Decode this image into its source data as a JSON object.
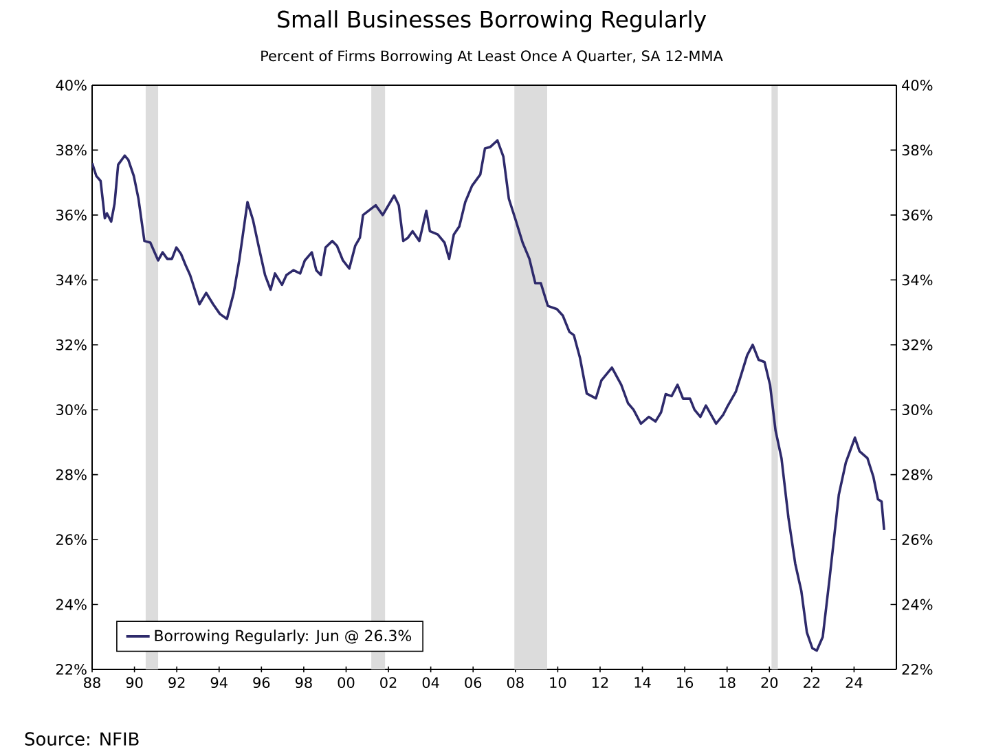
{
  "chart_data": {
    "type": "line",
    "title": "Small Businesses Borrowing Regularly",
    "subtitle": "Percent of Firms Borrowing At Least Once A Quarter, SA 12-MMA",
    "annotations": [
      "Source: NFIB"
    ],
    "series": [
      {
        "name": "Borrowing Regularly: Jun @ 26.3%",
        "color": "#2e2a6b",
        "x": [
          1988.0,
          1988.2,
          1988.4,
          1988.6,
          1988.7,
          1988.9,
          1989.06,
          1989.23,
          1989.54,
          1989.71,
          1989.97,
          1990.19,
          1990.47,
          1990.75,
          1991.12,
          1991.33,
          1991.55,
          1991.77,
          1991.98,
          1992.2,
          1992.42,
          1992.63,
          1993.07,
          1993.39,
          1993.72,
          1994.04,
          1994.37,
          1994.69,
          1994.95,
          1995.34,
          1995.6,
          1995.88,
          1996.17,
          1996.43,
          1996.64,
          1996.97,
          1997.18,
          1997.51,
          1997.83,
          1998.05,
          1998.38,
          1998.59,
          1998.81,
          1999.03,
          1999.35,
          1999.57,
          1999.85,
          2000.15,
          2000.43,
          2000.65,
          2000.8,
          2001.4,
          2001.73,
          2002.27,
          2002.49,
          2002.7,
          2002.92,
          2003.14,
          2003.46,
          2003.79,
          2003.96,
          2004.33,
          2004.65,
          2004.87,
          2005.09,
          2005.35,
          2005.63,
          2005.95,
          2006.34,
          2006.56,
          2006.82,
          2007.15,
          2007.43,
          2007.69,
          2008.01,
          2008.34,
          2008.66,
          2008.94,
          2009.2,
          2009.53,
          2009.96,
          2010.24,
          2010.55,
          2010.76,
          2011.05,
          2011.37,
          2011.8,
          2012.06,
          2012.56,
          2013.0,
          2013.32,
          2013.58,
          2013.93,
          2014.3,
          2014.62,
          2014.88,
          2015.1,
          2015.38,
          2015.66,
          2015.92,
          2016.25,
          2016.46,
          2016.74,
          2017.0,
          2017.48,
          2017.82,
          2018.04,
          2018.41,
          2018.62,
          2018.95,
          2019.21,
          2019.49,
          2019.77,
          2020.03,
          2020.29,
          2020.57,
          2020.9,
          2021.22,
          2021.51,
          2021.77,
          2022.03,
          2022.24,
          2022.52,
          2022.85,
          2023.28,
          2023.61,
          2024.04,
          2024.26,
          2024.63,
          2024.91,
          2025.13,
          2025.3,
          2025.42
        ],
        "values": [
          37.6,
          37.2,
          37.05,
          35.9,
          36.05,
          35.8,
          36.35,
          37.55,
          37.83,
          37.7,
          37.2,
          36.5,
          35.2,
          35.15,
          34.6,
          34.85,
          34.65,
          34.65,
          35.0,
          34.8,
          34.45,
          34.15,
          33.25,
          33.6,
          33.25,
          32.95,
          32.8,
          33.6,
          34.6,
          36.4,
          35.85,
          35.0,
          34.15,
          33.7,
          34.2,
          33.85,
          34.15,
          34.3,
          34.2,
          34.6,
          34.85,
          34.3,
          34.15,
          35.0,
          35.2,
          35.05,
          34.6,
          34.35,
          35.05,
          35.3,
          36.0,
          36.3,
          36.0,
          36.6,
          36.3,
          35.2,
          35.3,
          35.5,
          35.2,
          36.13,
          35.5,
          35.4,
          35.15,
          34.65,
          35.4,
          35.65,
          36.4,
          36.9,
          37.25,
          38.05,
          38.1,
          38.3,
          37.8,
          36.5,
          35.85,
          35.15,
          34.65,
          33.9,
          33.9,
          33.2,
          33.1,
          32.9,
          32.4,
          32.3,
          31.6,
          30.5,
          30.35,
          30.9,
          31.3,
          30.77,
          30.2,
          30.0,
          29.57,
          29.78,
          29.64,
          29.92,
          30.48,
          30.42,
          30.77,
          30.34,
          30.34,
          30.0,
          29.78,
          30.13,
          29.57,
          29.85,
          30.13,
          30.55,
          30.98,
          31.68,
          32.0,
          31.54,
          31.47,
          30.77,
          29.36,
          28.51,
          26.67,
          25.26,
          24.41,
          23.14,
          22.65,
          22.58,
          23.0,
          24.84,
          27.38,
          28.37,
          29.14,
          28.72,
          28.51,
          27.94,
          27.24,
          27.17,
          26.3
        ]
      }
    ],
    "xlim": [
      1988,
      2026
    ],
    "ylim": [
      22,
      40
    ],
    "y2lim": [
      22,
      40
    ],
    "xticks": [
      {
        "value": 1988,
        "label": "88"
      },
      {
        "value": 1990,
        "label": "90"
      },
      {
        "value": 1992,
        "label": "92"
      },
      {
        "value": 1994,
        "label": "94"
      },
      {
        "value": 1996,
        "label": "96"
      },
      {
        "value": 1998,
        "label": "98"
      },
      {
        "value": 2000,
        "label": "00"
      },
      {
        "value": 2002,
        "label": "02"
      },
      {
        "value": 2004,
        "label": "04"
      },
      {
        "value": 2006,
        "label": "06"
      },
      {
        "value": 2008,
        "label": "08"
      },
      {
        "value": 2010,
        "label": "10"
      },
      {
        "value": 2012,
        "label": "12"
      },
      {
        "value": 2014,
        "label": "14"
      },
      {
        "value": 2016,
        "label": "16"
      },
      {
        "value": 2018,
        "label": "18"
      },
      {
        "value": 2020,
        "label": "20"
      },
      {
        "value": 2022,
        "label": "22"
      },
      {
        "value": 2024,
        "label": "24"
      }
    ],
    "yticks": [
      {
        "value": 22,
        "label": "22%"
      },
      {
        "value": 24,
        "label": "24%"
      },
      {
        "value": 26,
        "label": "26%"
      },
      {
        "value": 28,
        "label": "28%"
      },
      {
        "value": 30,
        "label": "30%"
      },
      {
        "value": 32,
        "label": "32%"
      },
      {
        "value": 34,
        "label": "34%"
      },
      {
        "value": 36,
        "label": "36%"
      },
      {
        "value": 38,
        "label": "38%"
      },
      {
        "value": 40,
        "label": "40%"
      }
    ],
    "y2ticks": [
      {
        "value": 22,
        "label": "22%"
      },
      {
        "value": 24,
        "label": "24%"
      },
      {
        "value": 26,
        "label": "26%"
      },
      {
        "value": 28,
        "label": "28%"
      },
      {
        "value": 30,
        "label": "30%"
      },
      {
        "value": 32,
        "label": "32%"
      },
      {
        "value": 34,
        "label": "34%"
      },
      {
        "value": 36,
        "label": "36%"
      },
      {
        "value": 38,
        "label": "38%"
      },
      {
        "value": 40,
        "label": "40%"
      }
    ],
    "bands": [
      {
        "axis": "x",
        "from": 1990.53,
        "to": 1991.12,
        "color": "#dcdcdc"
      },
      {
        "axis": "x",
        "from": 2001.19,
        "to": 2001.84,
        "color": "#dcdcdc"
      },
      {
        "axis": "x",
        "from": 2007.95,
        "to": 2009.5,
        "color": "#dcdcdc"
      },
      {
        "axis": "x",
        "from": 2020.1,
        "to": 2020.4,
        "color": "#dcdcdc"
      }
    ],
    "grid": false,
    "legend": "bottom left",
    "line_style": "solid",
    "marker": "none"
  }
}
